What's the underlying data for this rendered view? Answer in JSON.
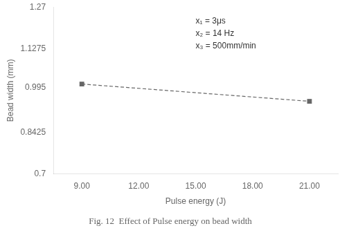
{
  "chart_data": {
    "type": "line",
    "title": "Fig. 12  Effect of Pulse energy on bead width",
    "x_label": "Pulse energy (J)",
    "y_label": "Bead width (mm)",
    "x": [
      9.0,
      21.0
    ],
    "values": [
      1.007,
      0.948
    ],
    "color": "#666666",
    "marker": "square",
    "line_style": "dashed",
    "xlim": [
      7.5,
      22.5
    ],
    "ylim": [
      0.7,
      1.27
    ],
    "xticks": [
      {
        "value": 9.0,
        "label": "9.00"
      },
      {
        "value": 12.0,
        "label": "12.00"
      },
      {
        "value": 15.0,
        "label": "15.00"
      },
      {
        "value": 18.0,
        "label": "18.00"
      },
      {
        "value": 21.0,
        "label": "21.00"
      }
    ],
    "yticks": [
      0.7,
      0.8425,
      0.995,
      1.1275,
      1.27
    ],
    "annotations": [
      {
        "lines": [
          "x₁ = 3μs",
          "x₂ = 14 Hz",
          "x₃ = 500mm/min"
        ],
        "x": 15.0,
        "y": 1.235
      }
    ],
    "grid": false,
    "legend": false
  }
}
